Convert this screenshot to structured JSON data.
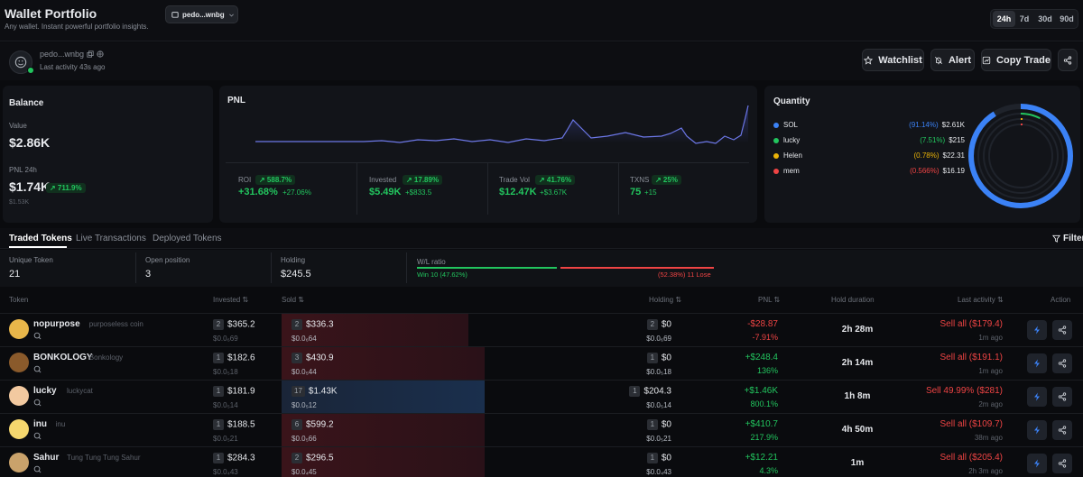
{
  "header": {
    "title": "Wallet Portfolio",
    "subtitle": "Any wallet. Instant powerful portfolio insights.",
    "wallet_select": "pedo...wnbg",
    "timeframes": [
      "24h",
      "7d",
      "30d",
      "90d"
    ],
    "active_timeframe": "24h"
  },
  "profile": {
    "wallet": "pedo...wnbg",
    "last_activity": "Last activity 43s ago"
  },
  "actions": {
    "watchlist": "Watchlist",
    "alert": "Alert",
    "copy_trade": "Copy Trade"
  },
  "balance": {
    "title": "Balance",
    "value_label": "Value",
    "value": "$2.86K",
    "pnl_label": "PNL 24h",
    "pnl_value": "$1.74K",
    "pnl_pct": "↗ 711.9%",
    "pnl_sub": "$1.53K"
  },
  "pnl": {
    "title": "PNL",
    "stats": [
      {
        "label": "ROI",
        "pill": "↗ 588.7%",
        "value": "+31.68%",
        "sub": "+27.06%"
      },
      {
        "label": "Invested",
        "pill": "↗ 17.89%",
        "value": "$5.49K",
        "sub": "+$833.5"
      },
      {
        "label": "Trade Vol",
        "pill": "↗ 41.76%",
        "value": "$12.47K",
        "sub": "+$3.67K"
      },
      {
        "label": "TXNS",
        "pill": "↗ 25%",
        "value": "75",
        "sub": "+15"
      }
    ]
  },
  "quantity": {
    "title": "Quantity",
    "items": [
      {
        "name": "SOL",
        "pct": "(91.14%)",
        "value": "$2.61K",
        "color": "#3b82f6",
        "fraction": 0.9114
      },
      {
        "name": "lucky",
        "pct": "(7.51%)",
        "value": "$215",
        "color": "#22c55e",
        "fraction": 0.0751
      },
      {
        "name": "Helen",
        "pct": "(0.78%)",
        "value": "$22.31",
        "color": "#eab308",
        "fraction": 0.0078
      },
      {
        "name": "mem",
        "pct": "(0.566%)",
        "value": "$16.19",
        "color": "#ef4444",
        "fraction": 0.00566
      }
    ]
  },
  "tabs": [
    "Traded Tokens",
    "Live Transactions",
    "Deployed Tokens"
  ],
  "filter_label": "Filter",
  "summary": {
    "unique_label": "Unique Token",
    "unique_value": "21",
    "open_label": "Open position",
    "open_value": "3",
    "holding_label": "Holding",
    "holding_value": "$245.5",
    "wl_label": "W/L ratio",
    "win_text": "Win 10 (47.62%)",
    "lose_text": "(52.38%) 11 Lose",
    "win_fraction": 0.4762
  },
  "table": {
    "headers": {
      "token": "Token",
      "invested": "Invested",
      "sold": "Sold",
      "holding": "Holding",
      "pnl": "PNL",
      "hold": "Hold duration",
      "last": "Last activity",
      "action": "Action"
    },
    "rows": [
      {
        "name": "nopurpose",
        "full": "purposeless coin",
        "inv_badge": "2",
        "invested": "$365.2",
        "inv_sub": "$0.0₆69",
        "sold_badge": "2",
        "sold": "$336.3",
        "sold_sub": "$0.0₆64",
        "sold_fraction": 0.92,
        "sold_color": "red",
        "hold_badge": "2",
        "holding": "$0",
        "hold_sub": "$0.0₆69",
        "pnl": "-$28.87",
        "pnl_pct": "-7.91%",
        "pnl_pos": false,
        "duration": "2h 28m",
        "last": "Sell all ($179.4)",
        "ago": "1m ago",
        "avatar": "#e8b64a"
      },
      {
        "name": "BONKOLOGY",
        "full": "Bonkology",
        "inv_badge": "1",
        "invested": "$182.6",
        "inv_sub": "$0.0₅18",
        "sold_badge": "3",
        "sold": "$430.9",
        "sold_sub": "$0.0₅44",
        "sold_fraction": 1.0,
        "sold_color": "red",
        "hold_badge": "1",
        "holding": "$0",
        "hold_sub": "$0.0₅18",
        "pnl": "+$248.4",
        "pnl_pct": "136%",
        "pnl_pos": true,
        "duration": "2h 14m",
        "last": "Sell all ($191.1)",
        "ago": "1m ago",
        "avatar": "#8a5a2b"
      },
      {
        "name": "lucky",
        "full": "luckycat",
        "inv_badge": "1",
        "invested": "$181.9",
        "inv_sub": "$0.0₅14",
        "sold_badge": "17",
        "sold": "$1.43K",
        "sold_sub": "$0.0₅12",
        "sold_fraction": 1.0,
        "sold_color": "blue",
        "hold_badge": "1",
        "holding": "$204.3",
        "hold_sub": "$0.0₅14",
        "pnl": "+$1.46K",
        "pnl_pct": "800.1%",
        "pnl_pos": true,
        "duration": "1h 8m",
        "last": "Sell 49.99% ($281)",
        "ago": "2m ago",
        "avatar": "#f2c9a0"
      },
      {
        "name": "inu",
        "full": "inu",
        "inv_badge": "1",
        "invested": "$188.5",
        "inv_sub": "$0.0₅21",
        "sold_badge": "6",
        "sold": "$599.2",
        "sold_sub": "$0.0₅66",
        "sold_fraction": 1.0,
        "sold_color": "red",
        "hold_badge": "1",
        "holding": "$0",
        "hold_sub": "$0.0₅21",
        "pnl": "+$410.7",
        "pnl_pct": "217.9%",
        "pnl_pos": true,
        "duration": "4h 50m",
        "last": "Sell all ($109.7)",
        "ago": "38m ago",
        "avatar": "#f5d76e"
      },
      {
        "name": "Sahur",
        "full": "Tung Tung Tung Sahur",
        "inv_badge": "1",
        "invested": "$284.3",
        "inv_sub": "$0.0₄43",
        "sold_badge": "2",
        "sold": "$296.5",
        "sold_sub": "$0.0₄45",
        "sold_fraction": 1.0,
        "sold_color": "red",
        "hold_badge": "1",
        "holding": "$0",
        "hold_sub": "$0.0₄43",
        "pnl": "+$12.21",
        "pnl_pct": "4.3%",
        "pnl_pos": true,
        "duration": "1m",
        "last": "Sell all ($205.4)",
        "ago": "2h 3m ago",
        "avatar": "#c9a26b"
      }
    ]
  }
}
